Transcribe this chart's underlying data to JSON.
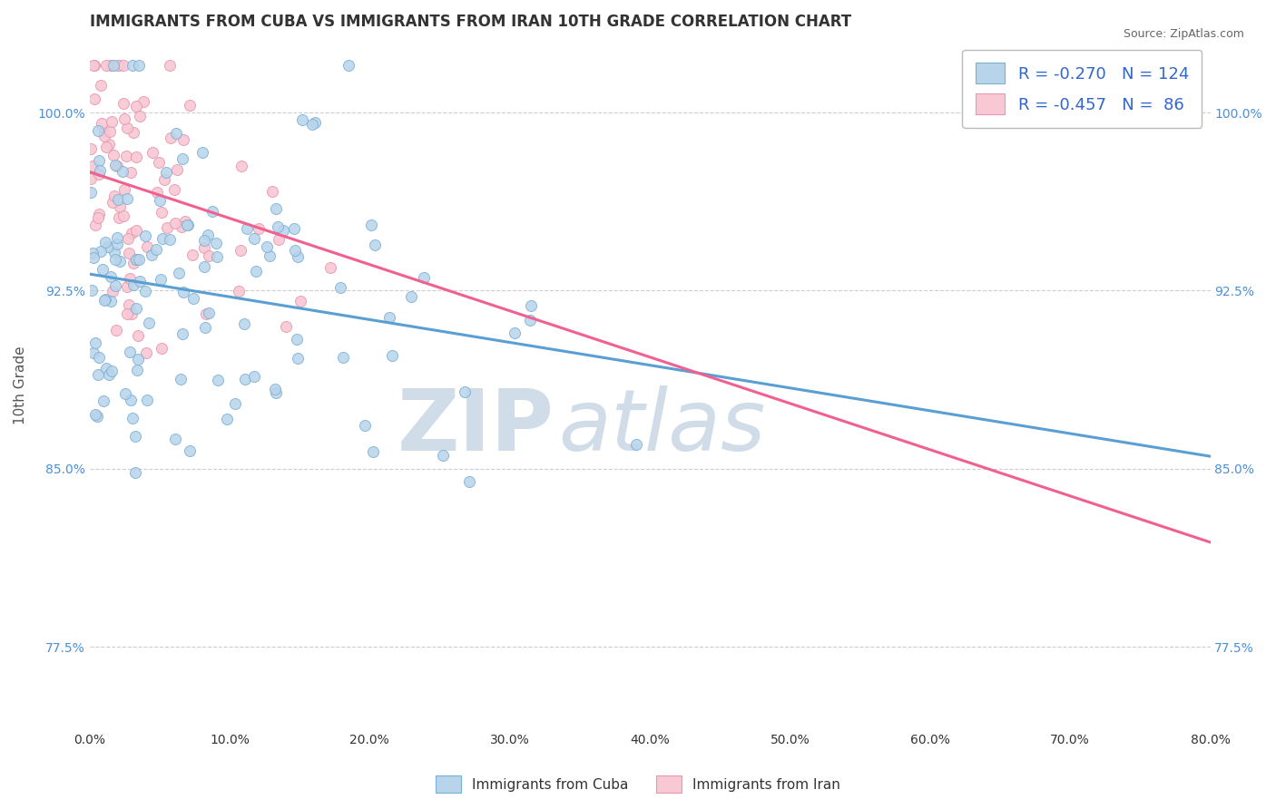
{
  "title": "IMMIGRANTS FROM CUBA VS IMMIGRANTS FROM IRAN 10TH GRADE CORRELATION CHART",
  "source_text": "Source: ZipAtlas.com",
  "ylabel": "10th Grade",
  "x_tick_labels": [
    "0.0%",
    "10.0%",
    "20.0%",
    "30.0%",
    "40.0%",
    "50.0%",
    "60.0%",
    "70.0%",
    "80.0%"
  ],
  "x_tick_values": [
    0.0,
    10.0,
    20.0,
    30.0,
    40.0,
    50.0,
    60.0,
    70.0,
    80.0
  ],
  "y_tick_labels": [
    "77.5%",
    "85.0%",
    "92.5%",
    "100.0%"
  ],
  "y_tick_values": [
    77.5,
    85.0,
    92.5,
    100.0
  ],
  "xlim": [
    0.0,
    80.0
  ],
  "ylim": [
    74.0,
    103.0
  ],
  "legend_r_cuba": "-0.270",
  "legend_n_cuba": "124",
  "legend_r_iran": "-0.457",
  "legend_n_iran": " 86",
  "cuba_fill_color": "#b8d4ea",
  "cuba_edge_color": "#7bafd4",
  "iran_fill_color": "#f8c8d4",
  "iran_edge_color": "#e898b0",
  "cuba_line_color": "#5a9fd4",
  "iran_line_color": "#f06090",
  "title_color": "#333333",
  "axis_label_color": "#4a90d9",
  "watermark_color": "#d0dde8",
  "background_color": "#ffffff",
  "grid_color": "#c8c8c8",
  "cuba_intercept": 93.2,
  "cuba_slope": -0.096,
  "iran_intercept": 97.5,
  "iran_slope": -0.195
}
